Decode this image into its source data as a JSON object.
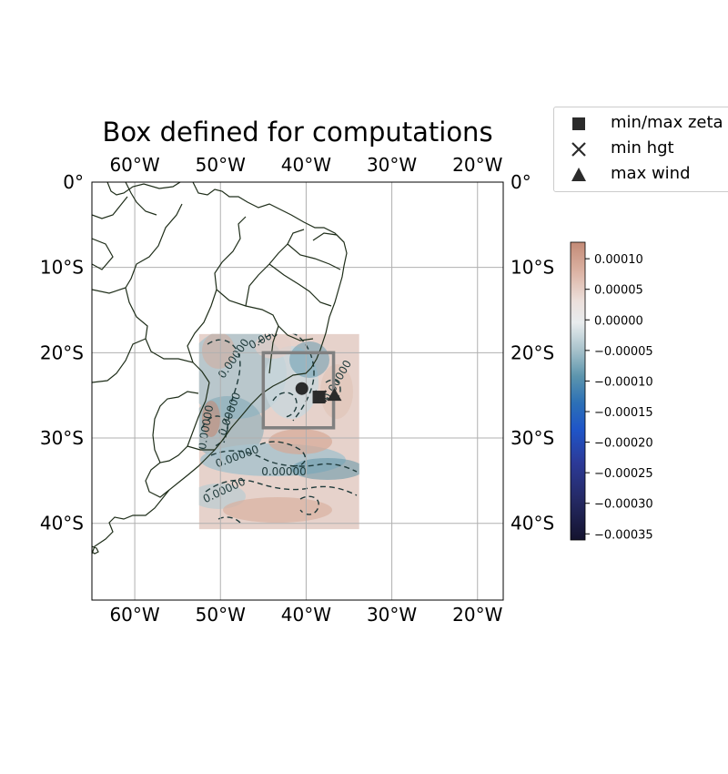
{
  "title": "Box defined for computations",
  "map": {
    "lon_range": [
      -65,
      -17
    ],
    "lat_range": [
      -49,
      0
    ],
    "lon_ticks": [
      {
        "lon": -60,
        "label": "60°W"
      },
      {
        "lon": -50,
        "label": "50°W"
      },
      {
        "lon": -40,
        "label": "40°W"
      },
      {
        "lon": -30,
        "label": "30°W"
      },
      {
        "lon": -20,
        "label": "20°W"
      }
    ],
    "lat_ticks": [
      {
        "lat": 0,
        "label": "0°"
      },
      {
        "lat": -10,
        "label": "10°S"
      },
      {
        "lat": -20,
        "label": "20°S"
      },
      {
        "lat": -30,
        "label": "30°S"
      },
      {
        "lat": -40,
        "label": "40°S"
      }
    ],
    "field_extent": {
      "lon": [
        -52.5,
        -33.8
      ],
      "lat": [
        -40.7,
        -17.8
      ]
    },
    "computation_box": {
      "lon": [
        -45,
        -36.8
      ],
      "lat": [
        -28.8,
        -20
      ]
    },
    "contour_labels": [
      "0.00000",
      "0.00000",
      "0.00000",
      "0.00000",
      "0.00000",
      "0.00000",
      "0.00000",
      "0.00000"
    ],
    "markers": {
      "center": {
        "lon": -40.5,
        "lat": -24.2
      },
      "min_max_zeta": {
        "lon": -38.5,
        "lat": -25.2
      },
      "min_hgt": {
        "lon": -38.3,
        "lat": -25.1
      },
      "max_wind": {
        "lon": -36.7,
        "lat": -25.0
      }
    },
    "colors": {
      "marker": "#2b2b2b",
      "box": "#808080",
      "coast": "#1f2e1a",
      "contour": "#1f3a3a"
    }
  },
  "legend": {
    "items": [
      {
        "symbol": "square",
        "label": "min/max zeta"
      },
      {
        "symbol": "cross",
        "label": "min hgt"
      },
      {
        "symbol": "triangle",
        "label": "max wind"
      }
    ]
  },
  "colorbar": {
    "range": [
      -0.00036,
      0.000127
    ],
    "ticks": [
      {
        "value": 0.0001,
        "label": "0.00010"
      },
      {
        "value": 5e-05,
        "label": "0.00005"
      },
      {
        "value": 0.0,
        "label": "0.00000"
      },
      {
        "value": -5e-05,
        "label": "−0.00005"
      },
      {
        "value": -0.0001,
        "label": "−0.00010"
      },
      {
        "value": -0.00015,
        "label": "−0.00015"
      },
      {
        "value": -0.0002,
        "label": "−0.00020"
      },
      {
        "value": -0.00025,
        "label": "−0.00025"
      },
      {
        "value": -0.0003,
        "label": "−0.00030"
      },
      {
        "value": -0.00035,
        "label": "−0.00035"
      }
    ]
  }
}
